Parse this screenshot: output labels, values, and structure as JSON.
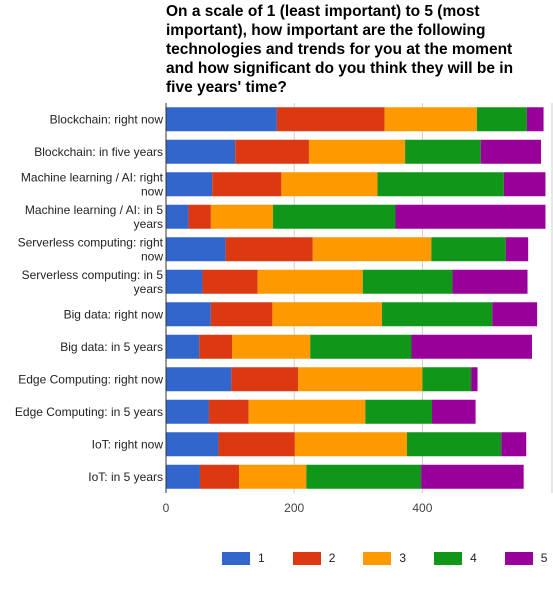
{
  "chart_data": {
    "type": "bar",
    "orientation": "horizontal",
    "stacked": true,
    "title_lines": [
      "On a scale of 1 (least important) to 5 (most",
      "important), how important are the following",
      "technologies and trends for you at the moment",
      "and how significant do you think they will be in",
      "five years' time?"
    ],
    "categories": [
      [
        "Blockchain: right now"
      ],
      [
        "Blockchain: in five years"
      ],
      [
        "Machine learning / AI: right",
        "now"
      ],
      [
        "Machine learning / AI: in 5",
        "years"
      ],
      [
        "Serverless computing: right",
        "now"
      ],
      [
        "Serverless computing: in 5",
        "years"
      ],
      [
        "Big data: right now"
      ],
      [
        "Big data: in 5 years"
      ],
      [
        "Edge Computing: right now"
      ],
      [
        "Edge Computing: in 5 years"
      ],
      [
        "IoT: right now"
      ],
      [
        "IoT: in 5 years"
      ]
    ],
    "series": [
      {
        "name": "1",
        "color": "#3366cc",
        "values": [
          173,
          108,
          72,
          35,
          93,
          57,
          70,
          52,
          102,
          67,
          82,
          53
        ]
      },
      {
        "name": "2",
        "color": "#dc3912",
        "values": [
          168,
          115,
          108,
          35,
          136,
          86,
          96,
          51,
          104,
          62,
          119,
          61
        ]
      },
      {
        "name": "3",
        "color": "#ff9900",
        "values": [
          144,
          150,
          150,
          97,
          185,
          164,
          171,
          122,
          194,
          182,
          175,
          105
        ]
      },
      {
        "name": "4",
        "color": "#109618",
        "values": [
          78,
          118,
          197,
          191,
          116,
          140,
          172,
          158,
          76,
          104,
          147,
          179
        ]
      },
      {
        "name": "5",
        "color": "#990099",
        "values": [
          26,
          94,
          65,
          234,
          35,
          117,
          70,
          188,
          10,
          68,
          39,
          160
        ]
      }
    ],
    "x_ticks": [
      0,
      200,
      400
    ],
    "xlim": [
      0,
      600
    ],
    "gridlines": true,
    "legend_position": "bottom"
  }
}
